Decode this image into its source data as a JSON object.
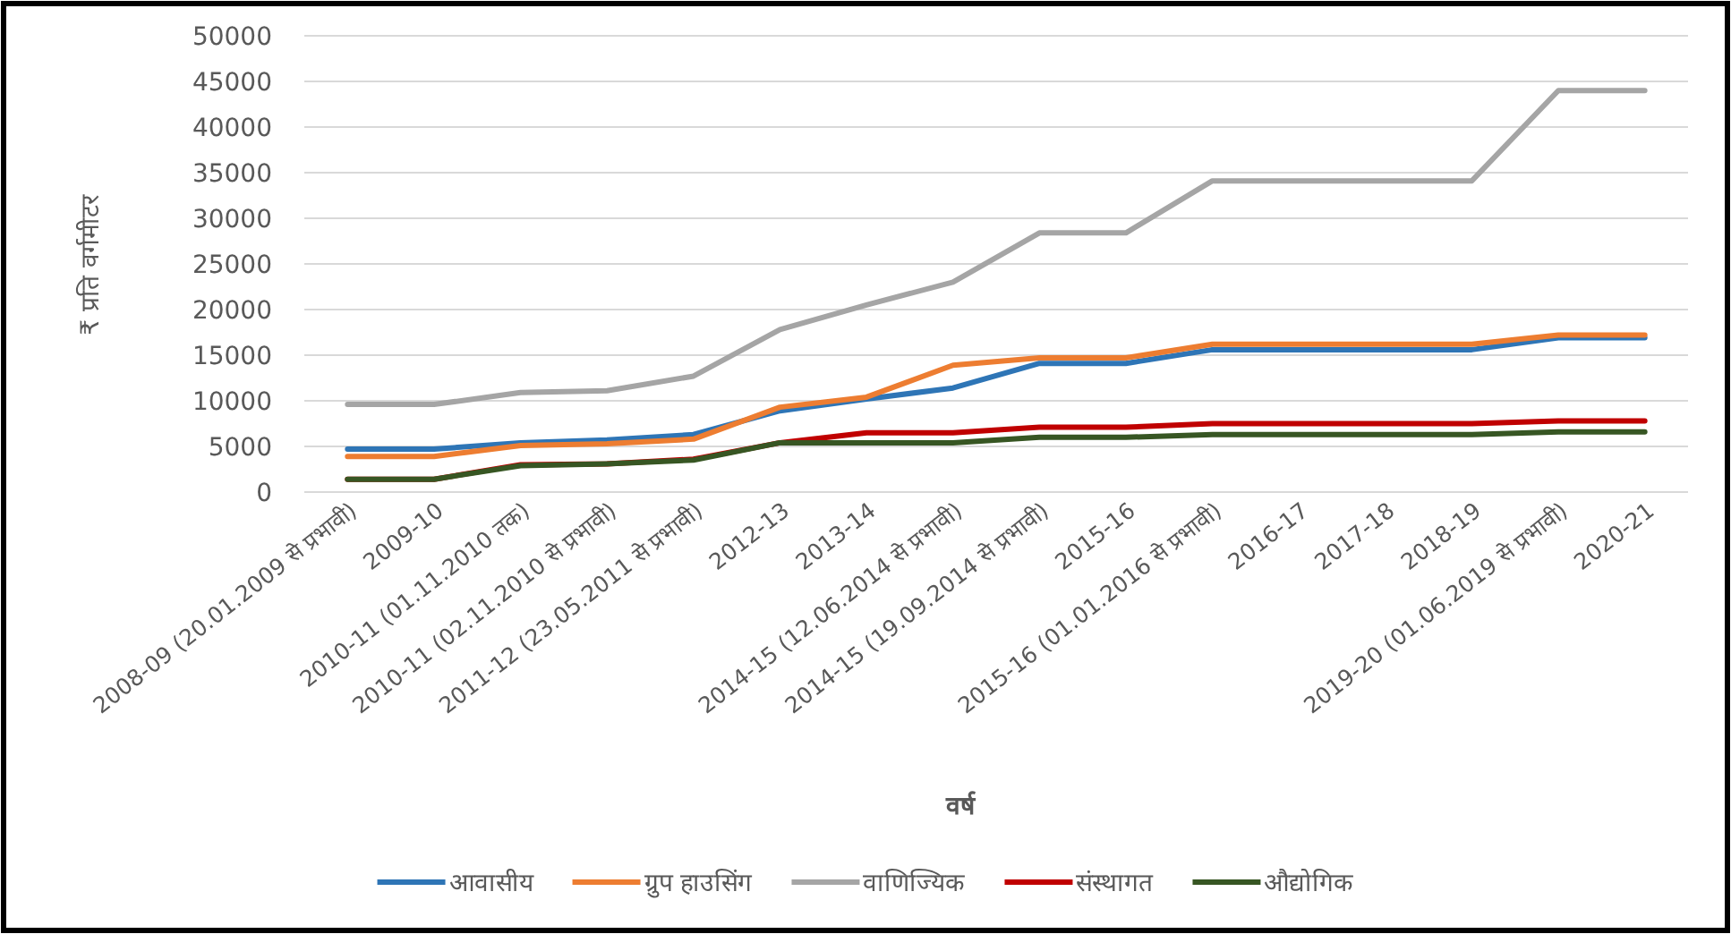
{
  "chart_data": {
    "type": "line",
    "xlabel": "वर्ष",
    "ylabel": "₹ प्रति वर्गमीटर",
    "categories": [
      "2008-09 (20.01.2009 से प्रभावी)",
      "2009-10",
      "2010-11 (01.11.2010 तक)",
      "2010-11 (02.11.2010 से प्रभावी)",
      "2011-12 (23.05.2011 से प्रभावी)",
      "2012-13",
      "2013-14",
      "2014-15 (12.06.2014 से प्रभावी)",
      "2014-15 (19.09.2014 से प्रभावी)",
      "2015-16",
      "2015-16 (01.01.2016 से प्रभावी)",
      "2016-17",
      "2017-18",
      "2018-19",
      "2019-20 (01.06.2019 से प्रभावी)",
      "2020-21"
    ],
    "series": [
      {
        "name": "आवासीय",
        "color": "#2e75b6",
        "values": [
          4700,
          4700,
          5400,
          5700,
          6300,
          8900,
          10200,
          11400,
          14100,
          14100,
          15600,
          15600,
          15600,
          15600,
          16900,
          16900
        ]
      },
      {
        "name": "ग्रुप हाउसिंग",
        "color": "#ed7d31",
        "values": [
          3900,
          3900,
          5100,
          5300,
          5800,
          9300,
          10400,
          13900,
          14700,
          14700,
          16200,
          16200,
          16200,
          16200,
          17200,
          17200
        ]
      },
      {
        "name": "वाणिज्यिक",
        "color": "#a5a5a5",
        "values": [
          9600,
          9600,
          10900,
          11100,
          12700,
          17800,
          20500,
          23000,
          28400,
          28400,
          34100,
          34100,
          34100,
          34100,
          44000,
          44000
        ]
      },
      {
        "name": "संस्थागत",
        "color": "#c00000",
        "values": [
          1400,
          1400,
          3000,
          3100,
          3600,
          5400,
          6500,
          6500,
          7100,
          7100,
          7500,
          7500,
          7500,
          7500,
          7800,
          7800
        ]
      },
      {
        "name": "औद्योगिक",
        "color": "#375623",
        "values": [
          1400,
          1400,
          2900,
          3100,
          3500,
          5400,
          5400,
          5400,
          6000,
          6000,
          6300,
          6300,
          6300,
          6300,
          6600,
          6600
        ]
      }
    ],
    "ylim": [
      0,
      50000
    ],
    "yticks": [
      0,
      5000,
      10000,
      15000,
      20000,
      25000,
      30000,
      35000,
      40000,
      45000,
      50000
    ],
    "grid": "y",
    "legend": "bottom",
    "marker": "none",
    "line_style": "solid"
  }
}
